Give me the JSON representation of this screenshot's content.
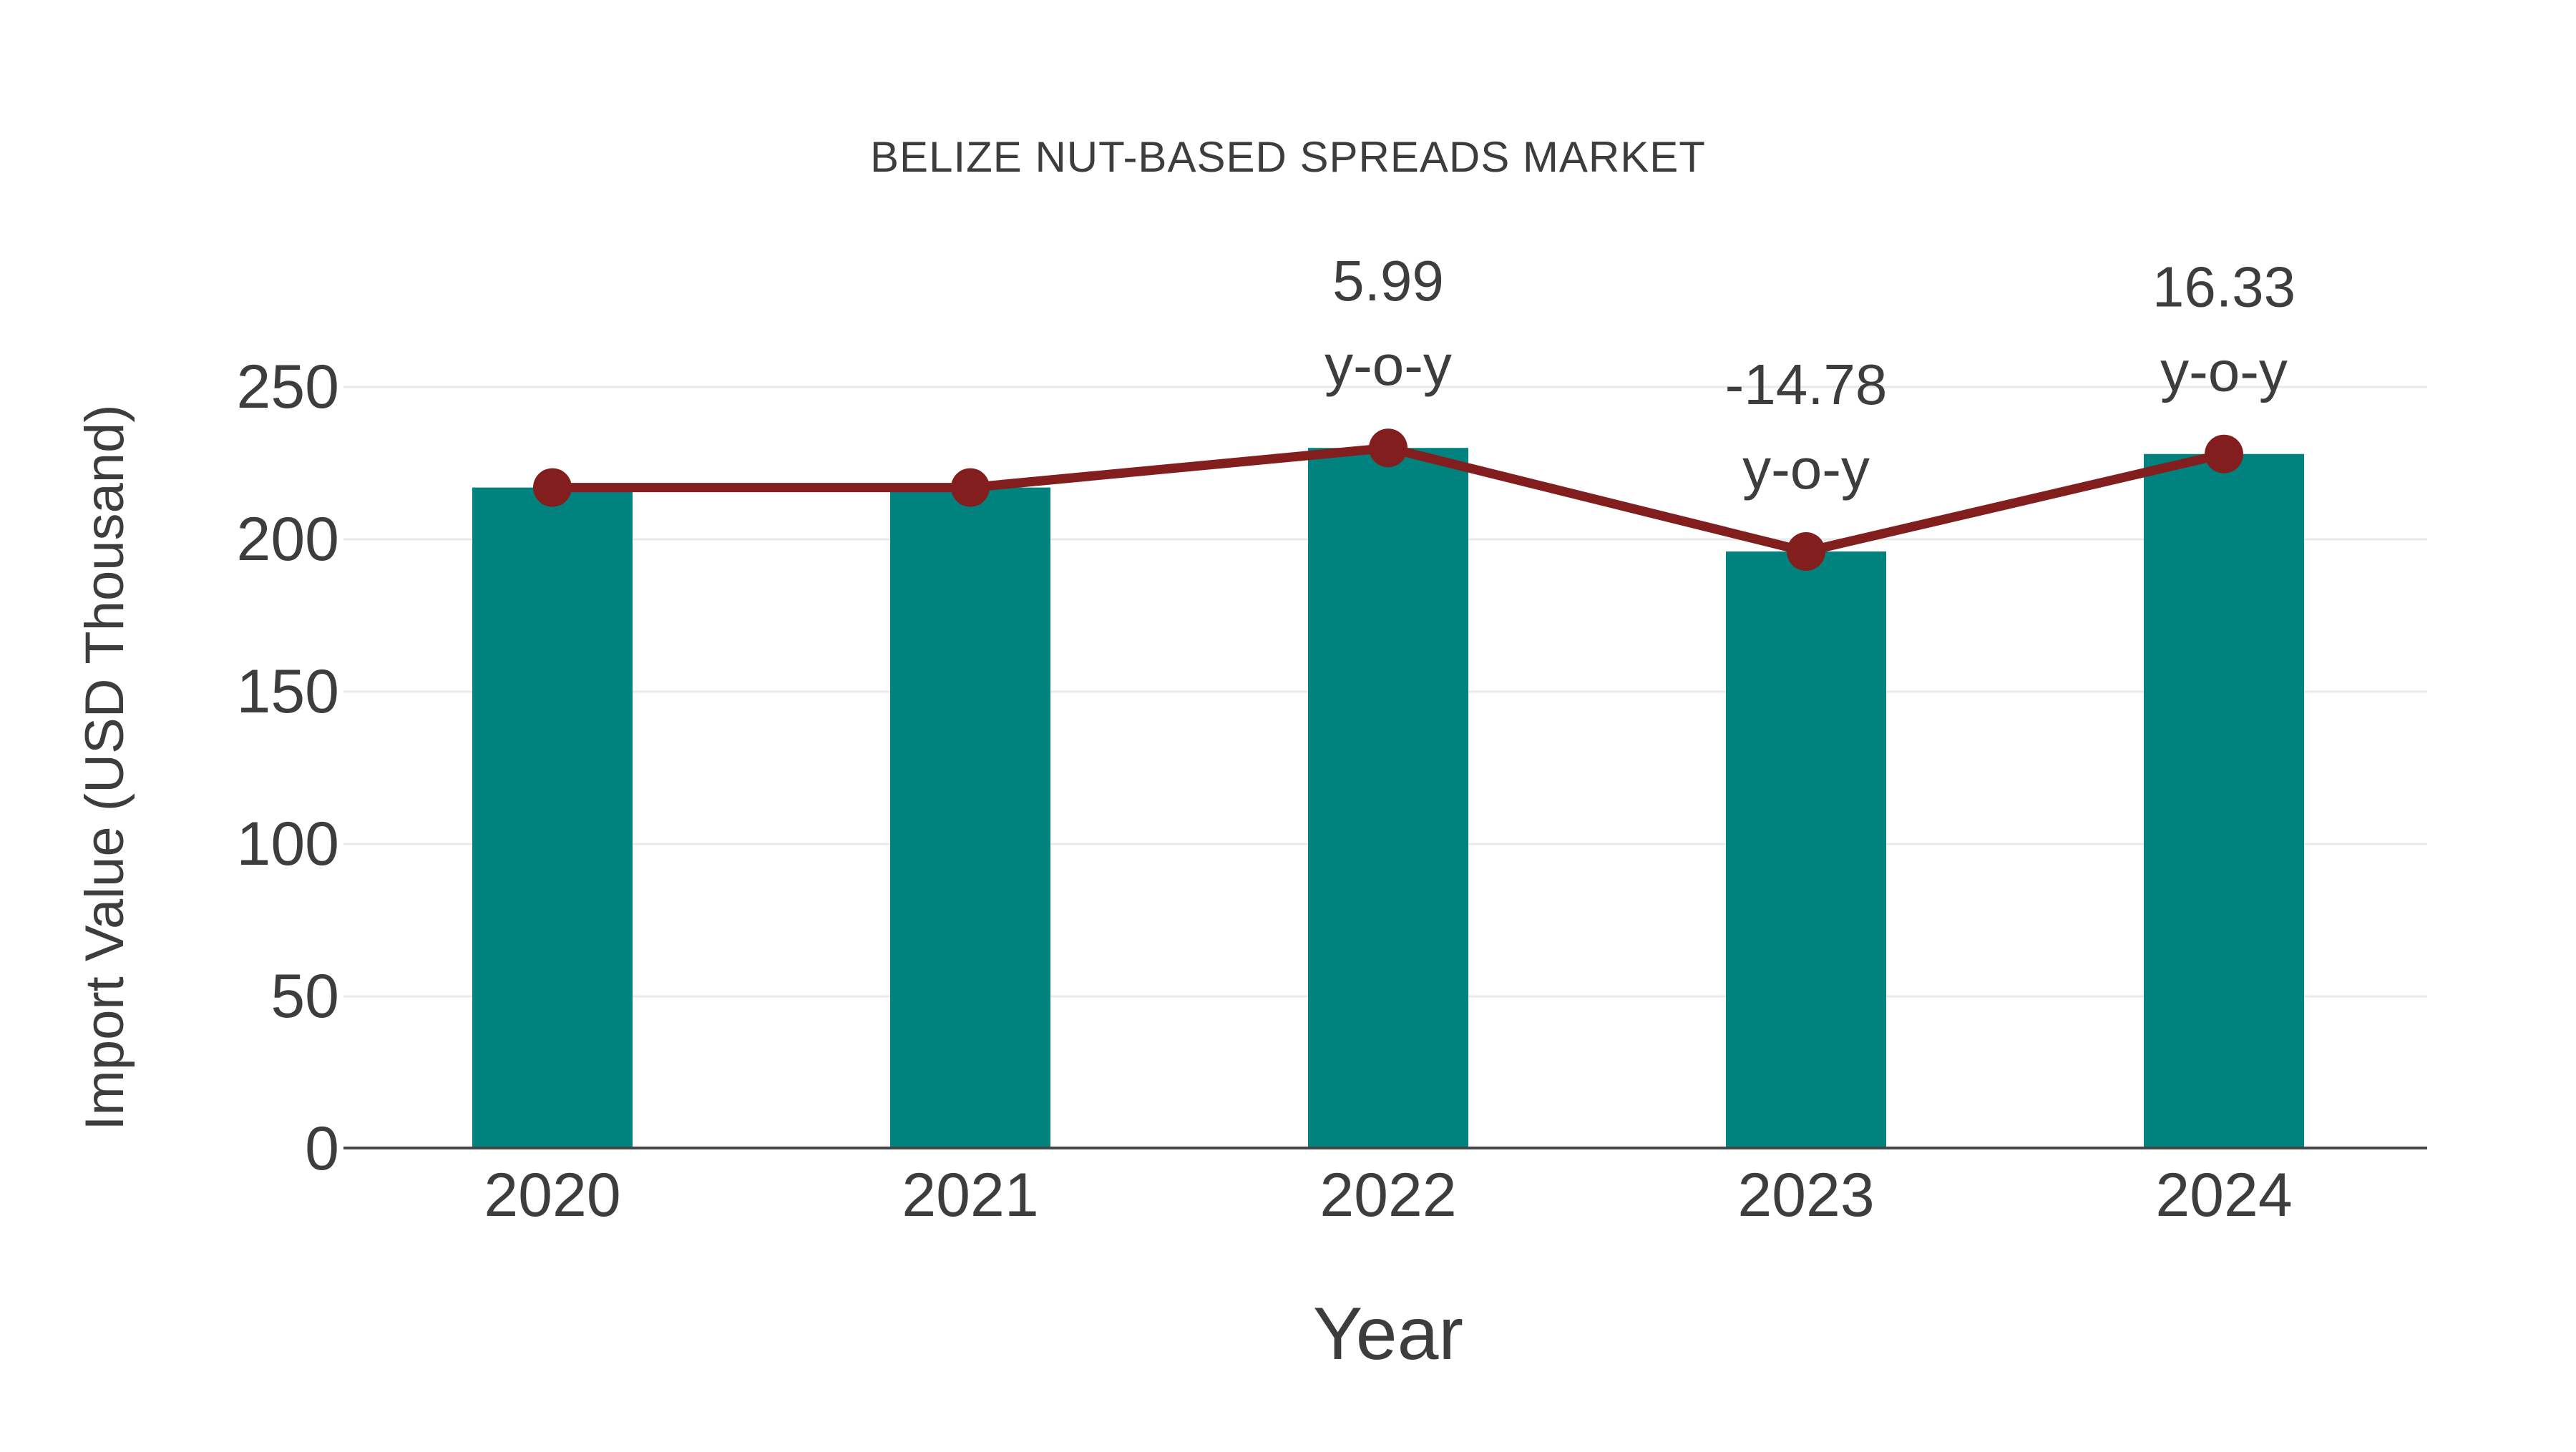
{
  "figure": {
    "title": "BELIZE NUT-BASED SPREADS MARKET"
  },
  "chart_data": {
    "type": "bar",
    "title": "BELIZE NUT-BASED SPREADS MARKET",
    "categories": [
      "2020",
      "2021",
      "2022",
      "2023",
      "2024"
    ],
    "series": [
      {
        "name": "Import Value bars",
        "type": "bar",
        "values": [
          217,
          217,
          230,
          196,
          228
        ]
      },
      {
        "name": "Import Value trend line",
        "type": "line",
        "values": [
          217,
          217,
          230,
          196,
          228
        ]
      }
    ],
    "annotations": [
      {
        "category": "2022",
        "line1": "5.99",
        "line2": "y-o-y"
      },
      {
        "category": "2023",
        "line1": "-14.78",
        "line2": "y-o-y"
      },
      {
        "category": "2024",
        "line1": "16.33",
        "line2": "y-o-y"
      }
    ],
    "xlabel": "Year",
    "ylabel": "Import Value (USD Thousand)",
    "ylim": [
      0,
      250
    ],
    "yticks": [
      0,
      50,
      100,
      150,
      200,
      250
    ],
    "grid": true,
    "legend_position": "none",
    "colors": {
      "bar": "#00827E",
      "line": "#821E1E",
      "marker": "#821E1E",
      "text": "#3D3D3D",
      "grid": "#E9E9E9",
      "axis": "#474747",
      "background": "#FFFFFF"
    }
  }
}
